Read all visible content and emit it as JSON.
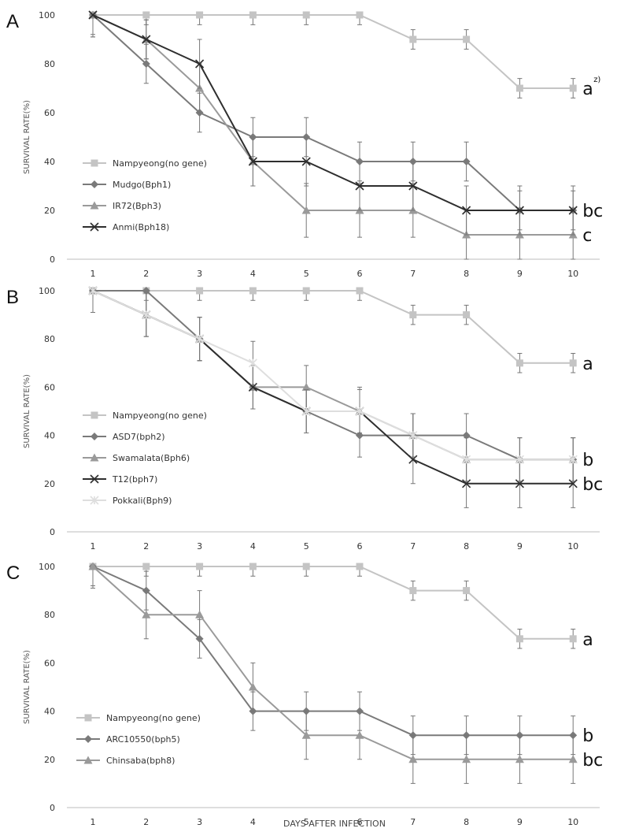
{
  "figure": {
    "xlabel": "DAYS AFTER INFECTION"
  },
  "chart_data": [
    {
      "type": "line",
      "panel": "A",
      "ylabel": "SURVIVAL RATE(%)",
      "x": [
        1,
        2,
        3,
        4,
        5,
        6,
        7,
        8,
        9,
        10
      ],
      "ylim": [
        0,
        100
      ],
      "yticks": [
        0,
        20,
        40,
        60,
        80,
        100
      ],
      "grid": false,
      "legend_position": "left-middle",
      "series": [
        {
          "name": "Nampyeong(no gene)",
          "marker": "square",
          "color": "#c4c4c4",
          "values": [
            100,
            100,
            100,
            100,
            100,
            100,
            90,
            90,
            70,
            70
          ],
          "errors": [
            0,
            4,
            4,
            4,
            4,
            4,
            4,
            4,
            4,
            4
          ]
        },
        {
          "name": "Mudgo(Bph1)",
          "marker": "diamond",
          "color": "#7a7a7a",
          "values": [
            100,
            80,
            60,
            50,
            50,
            40,
            40,
            40,
            20,
            20
          ],
          "errors": [
            9,
            8,
            8,
            8,
            8,
            8,
            8,
            8,
            8,
            8
          ]
        },
        {
          "name": "IR72(Bph3)",
          "marker": "triangle",
          "color": "#9a9a9a",
          "values": [
            100,
            90,
            70,
            40,
            20,
            20,
            20,
            10,
            10,
            10
          ],
          "errors": [
            8,
            8,
            10,
            10,
            11,
            11,
            11,
            10,
            10,
            10
          ]
        },
        {
          "name": "Anmi(Bph18)",
          "marker": "x",
          "color": "#2e2e2e",
          "values": [
            100,
            90,
            80,
            40,
            40,
            30,
            30,
            20,
            20,
            20
          ],
          "errors": [
            9,
            8,
            10,
            10,
            10,
            10,
            10,
            10,
            10,
            10
          ]
        }
      ],
      "annotations": [
        {
          "text": "a",
          "superscript": "z)",
          "series_index": 0
        },
        {
          "text": "bc",
          "series_index": 3
        },
        {
          "text": "c",
          "series_index": 2
        }
      ]
    },
    {
      "type": "line",
      "panel": "B",
      "ylabel": "SURVIVAL RATE(%)",
      "x": [
        1,
        2,
        3,
        4,
        5,
        6,
        7,
        8,
        9,
        10
      ],
      "ylim": [
        0,
        100
      ],
      "yticks": [
        0,
        20,
        40,
        60,
        80,
        100
      ],
      "grid": false,
      "legend_position": "left-middle",
      "series": [
        {
          "name": "Nampyeong(no gene)",
          "marker": "square",
          "color": "#c4c4c4",
          "values": [
            100,
            100,
            100,
            100,
            100,
            100,
            90,
            90,
            70,
            70
          ],
          "errors": [
            0,
            4,
            4,
            4,
            4,
            4,
            4,
            4,
            4,
            4
          ]
        },
        {
          "name": "ASD7(bph2)",
          "marker": "diamond",
          "color": "#7a7a7a",
          "values": [
            100,
            100,
            80,
            60,
            50,
            40,
            40,
            40,
            30,
            30
          ],
          "errors": [
            0,
            0,
            9,
            9,
            9,
            9,
            9,
            9,
            9,
            9
          ]
        },
        {
          "name": "Swamalata(Bph6)",
          "marker": "triangle",
          "color": "#9a9a9a",
          "values": [
            100,
            90,
            80,
            60,
            60,
            50,
            40,
            30,
            30,
            30
          ],
          "errors": [
            9,
            9,
            9,
            9,
            9,
            9,
            9,
            9,
            9,
            9
          ]
        },
        {
          "name": "T12(bph7)",
          "marker": "x",
          "color": "#2e2e2e",
          "values": [
            100,
            90,
            80,
            60,
            50,
            50,
            30,
            20,
            20,
            20
          ],
          "errors": [
            9,
            9,
            9,
            9,
            9,
            10,
            10,
            10,
            10,
            10
          ]
        },
        {
          "name": "Pokkali(Bph9)",
          "marker": "star",
          "color": "#dedede",
          "values": [
            100,
            90,
            80,
            70,
            50,
            50,
            40,
            30,
            30,
            30
          ],
          "errors": [
            9,
            9,
            9,
            9,
            9,
            9,
            9,
            9,
            9,
            9
          ]
        }
      ],
      "annotations": [
        {
          "text": "a",
          "series_index": 0
        },
        {
          "text": "b",
          "series_index": 2
        },
        {
          "text": "bc",
          "series_index": 3
        }
      ]
    },
    {
      "type": "line",
      "panel": "C",
      "ylabel": "SURVIVAL RATE(%)",
      "x": [
        1,
        2,
        3,
        4,
        5,
        6,
        7,
        8,
        9,
        10
      ],
      "ylim": [
        0,
        100
      ],
      "yticks": [
        0,
        20,
        40,
        60,
        80,
        100
      ],
      "grid": false,
      "legend_position": "left-bottom",
      "series": [
        {
          "name": "Nampyeong(no gene)",
          "marker": "square",
          "color": "#c4c4c4",
          "values": [
            100,
            100,
            100,
            100,
            100,
            100,
            90,
            90,
            70,
            70
          ],
          "errors": [
            0,
            4,
            4,
            4,
            4,
            4,
            4,
            4,
            4,
            4
          ]
        },
        {
          "name": "ARC10550(bph5)",
          "marker": "diamond",
          "color": "#7a7a7a",
          "values": [
            100,
            90,
            70,
            40,
            40,
            40,
            30,
            30,
            30,
            30
          ],
          "errors": [
            9,
            8,
            8,
            8,
            8,
            8,
            8,
            8,
            8,
            8
          ]
        },
        {
          "name": "Chinsaba(bph8)",
          "marker": "triangle",
          "color": "#9a9a9a",
          "values": [
            100,
            80,
            80,
            50,
            30,
            30,
            20,
            20,
            20,
            20
          ],
          "errors": [
            8,
            10,
            10,
            10,
            10,
            10,
            10,
            10,
            10,
            10
          ]
        }
      ],
      "annotations": [
        {
          "text": "a",
          "series_index": 0
        },
        {
          "text": "b",
          "series_index": 1
        },
        {
          "text": "bc",
          "series_index": 2
        }
      ]
    }
  ]
}
